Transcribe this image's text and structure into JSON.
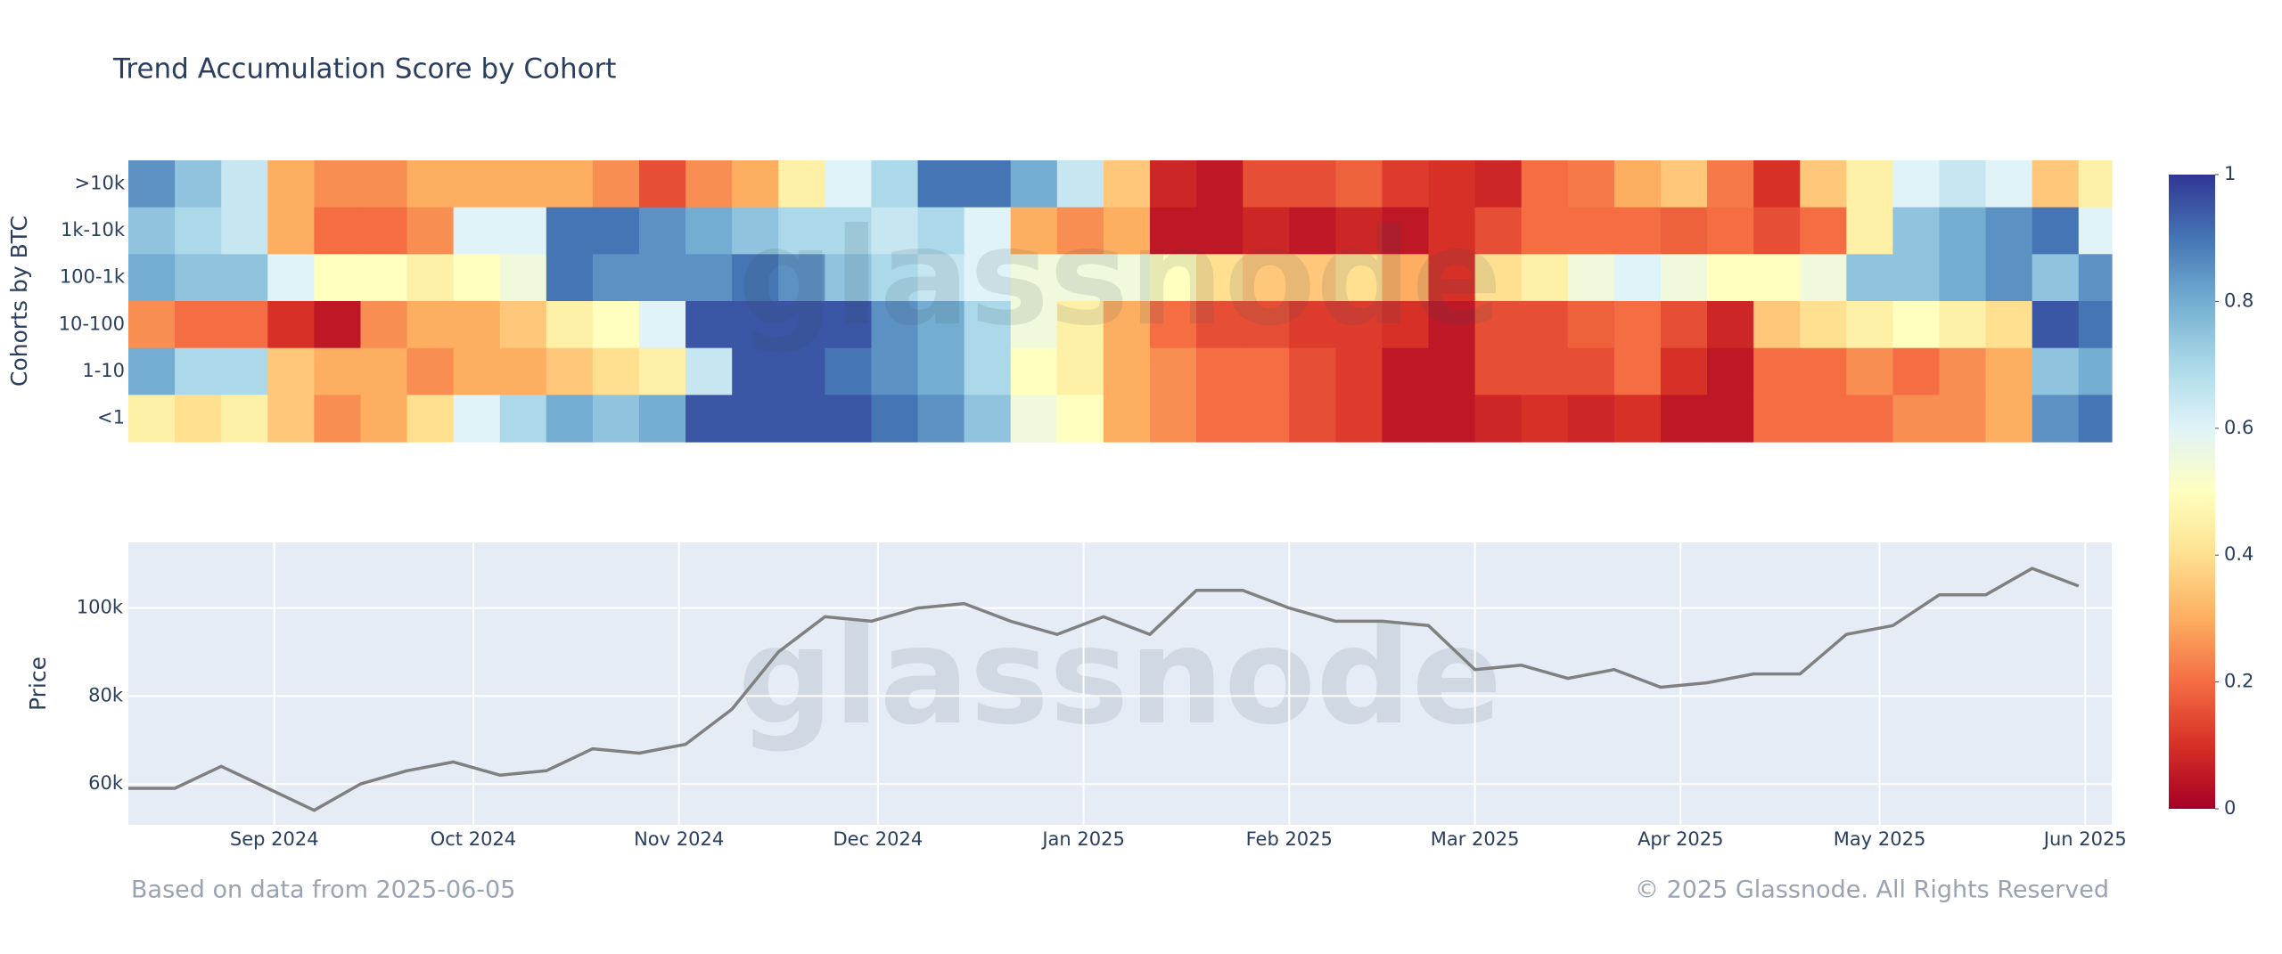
{
  "title": "Trend Accumulation Score by Cohort",
  "watermark": "glassnode",
  "footer_left": "Based on data from 2025-06-05",
  "footer_right": "© 2025 Glassnode. All Rights Reserved",
  "chart_data": [
    {
      "type": "heatmap",
      "y_label": "Cohorts by BTC",
      "categories": [
        ">10k",
        "1k-10k",
        "100-1k",
        "10-100",
        "1-10",
        "<1"
      ],
      "x": [
        "2024-08-10",
        "2024-08-17",
        "2024-08-24",
        "2024-08-31",
        "2024-09-07",
        "2024-09-14",
        "2024-09-21",
        "2024-09-28",
        "2024-10-05",
        "2024-10-12",
        "2024-10-19",
        "2024-10-26",
        "2024-11-02",
        "2024-11-09",
        "2024-11-16",
        "2024-11-23",
        "2024-11-30",
        "2024-12-07",
        "2024-12-14",
        "2024-12-21",
        "2024-12-28",
        "2025-01-04",
        "2025-01-11",
        "2025-01-18",
        "2025-01-25",
        "2025-02-01",
        "2025-02-08",
        "2025-02-15",
        "2025-02-22",
        "2025-03-01",
        "2025-03-08",
        "2025-03-15",
        "2025-03-22",
        "2025-03-29",
        "2025-04-05",
        "2025-04-12",
        "2025-04-19",
        "2025-04-26",
        "2025-05-03",
        "2025-05-10",
        "2025-05-17",
        "2025-05-24",
        "2025-05-31"
      ],
      "xlim": [
        "2024-08-10",
        "2025-06-05"
      ],
      "z": [
        [
          0.85,
          0.75,
          0.65,
          0.3,
          0.25,
          0.25,
          0.3,
          0.3,
          0.3,
          0.3,
          0.25,
          0.15,
          0.25,
          0.3,
          0.45,
          0.6,
          0.7,
          0.9,
          0.9,
          0.8,
          0.65,
          0.35,
          0.08,
          0.05,
          0.15,
          0.15,
          0.18,
          0.12,
          0.1,
          0.08,
          0.2,
          0.22,
          0.3,
          0.35,
          0.22,
          0.1,
          0.35,
          0.45,
          0.6,
          0.65,
          0.6,
          0.35,
          0.45
        ],
        [
          0.75,
          0.7,
          0.65,
          0.3,
          0.2,
          0.2,
          0.25,
          0.6,
          0.6,
          0.9,
          0.9,
          0.85,
          0.8,
          0.75,
          0.7,
          0.7,
          0.65,
          0.7,
          0.6,
          0.3,
          0.25,
          0.3,
          0.05,
          0.05,
          0.08,
          0.05,
          0.08,
          0.05,
          0.1,
          0.15,
          0.2,
          0.2,
          0.2,
          0.18,
          0.2,
          0.15,
          0.2,
          0.45,
          0.75,
          0.8,
          0.85,
          0.9,
          0.6
        ],
        [
          0.8,
          0.75,
          0.75,
          0.6,
          0.5,
          0.5,
          0.45,
          0.5,
          0.55,
          0.9,
          0.85,
          0.85,
          0.85,
          0.9,
          0.85,
          0.75,
          0.7,
          0.65,
          0.6,
          0.55,
          0.55,
          0.55,
          0.5,
          0.4,
          0.35,
          0.35,
          0.4,
          0.3,
          0.1,
          0.4,
          0.45,
          0.55,
          0.6,
          0.55,
          0.5,
          0.5,
          0.55,
          0.75,
          0.75,
          0.8,
          0.85,
          0.75,
          0.85
        ],
        [
          0.25,
          0.2,
          0.2,
          0.1,
          0.05,
          0.25,
          0.3,
          0.3,
          0.35,
          0.45,
          0.5,
          0.6,
          0.95,
          0.95,
          0.95,
          0.95,
          0.85,
          0.8,
          0.7,
          0.55,
          0.45,
          0.3,
          0.2,
          0.15,
          0.15,
          0.12,
          0.12,
          0.1,
          0.05,
          0.15,
          0.15,
          0.18,
          0.2,
          0.15,
          0.08,
          0.35,
          0.4,
          0.45,
          0.5,
          0.45,
          0.4,
          0.95,
          0.9
        ],
        [
          0.8,
          0.7,
          0.7,
          0.35,
          0.3,
          0.3,
          0.25,
          0.3,
          0.3,
          0.35,
          0.4,
          0.45,
          0.65,
          0.95,
          0.95,
          0.9,
          0.85,
          0.8,
          0.7,
          0.5,
          0.45,
          0.3,
          0.25,
          0.2,
          0.2,
          0.15,
          0.12,
          0.05,
          0.05,
          0.15,
          0.15,
          0.15,
          0.2,
          0.1,
          0.05,
          0.2,
          0.2,
          0.25,
          0.2,
          0.25,
          0.3,
          0.75,
          0.8
        ],
        [
          0.45,
          0.4,
          0.45,
          0.35,
          0.25,
          0.3,
          0.4,
          0.6,
          0.7,
          0.8,
          0.75,
          0.8,
          0.95,
          0.95,
          0.95,
          0.95,
          0.9,
          0.85,
          0.75,
          0.55,
          0.5,
          0.3,
          0.25,
          0.2,
          0.2,
          0.15,
          0.12,
          0.05,
          0.05,
          0.08,
          0.1,
          0.08,
          0.1,
          0.05,
          0.05,
          0.2,
          0.2,
          0.2,
          0.25,
          0.25,
          0.3,
          0.85,
          0.9
        ]
      ],
      "zlim": [
        0,
        1
      ],
      "zticks": [
        0,
        0.2,
        0.4,
        0.6,
        0.8,
        1
      ],
      "colorscale": [
        "#a50026",
        "#d73027",
        "#f46d43",
        "#fdae61",
        "#fee090",
        "#ffffbf",
        "#e0f3f8",
        "#abd9e9",
        "#74add1",
        "#4575b4",
        "#313695"
      ]
    },
    {
      "type": "line",
      "y_label": "Price",
      "x": [
        "2024-08-10",
        "2024-08-17",
        "2024-08-24",
        "2024-08-31",
        "2024-09-07",
        "2024-09-14",
        "2024-09-21",
        "2024-09-28",
        "2024-10-05",
        "2024-10-12",
        "2024-10-19",
        "2024-10-26",
        "2024-11-02",
        "2024-11-09",
        "2024-11-16",
        "2024-11-23",
        "2024-11-30",
        "2024-12-07",
        "2024-12-14",
        "2024-12-21",
        "2024-12-28",
        "2025-01-04",
        "2025-01-11",
        "2025-01-18",
        "2025-01-25",
        "2025-02-01",
        "2025-02-08",
        "2025-02-15",
        "2025-02-22",
        "2025-03-01",
        "2025-03-08",
        "2025-03-15",
        "2025-03-22",
        "2025-03-29",
        "2025-04-05",
        "2025-04-12",
        "2025-04-19",
        "2025-04-26",
        "2025-05-03",
        "2025-05-10",
        "2025-05-17",
        "2025-05-24",
        "2025-05-31"
      ],
      "values": [
        59000,
        59000,
        64000,
        59000,
        54000,
        60000,
        63000,
        65000,
        62000,
        63000,
        68000,
        67000,
        69000,
        77000,
        90000,
        98000,
        97000,
        100000,
        101000,
        97000,
        94000,
        98000,
        94000,
        104000,
        104000,
        100000,
        97000,
        97000,
        96000,
        86000,
        87000,
        84000,
        86000,
        82000,
        83000,
        85000,
        85000,
        94000,
        96000,
        103000,
        103000,
        109000,
        105000
      ],
      "color": "#808080",
      "xlim": [
        "2024-08-10",
        "2025-06-05"
      ],
      "xticks": [
        {
          "value": "2024-09-01",
          "label": "Sep 2024"
        },
        {
          "value": "2024-10-01",
          "label": "Oct 2024"
        },
        {
          "value": "2024-11-01",
          "label": "Nov 2024"
        },
        {
          "value": "2024-12-01",
          "label": "Dec 2024"
        },
        {
          "value": "2025-01-01",
          "label": "Jan 2025"
        },
        {
          "value": "2025-02-01",
          "label": "Feb 2025"
        },
        {
          "value": "2025-03-01",
          "label": "Mar 2025"
        },
        {
          "value": "2025-04-01",
          "label": "Apr 2025"
        },
        {
          "value": "2025-05-01",
          "label": "May 2025"
        },
        {
          "value": "2025-06-01",
          "label": "Jun 2025"
        }
      ],
      "ylim": [
        50700,
        114900
      ],
      "yticks": [
        {
          "value": 60000,
          "label": "60k"
        },
        {
          "value": 80000,
          "label": "80k"
        },
        {
          "value": 100000,
          "label": "100k"
        }
      ],
      "grid": true
    }
  ]
}
